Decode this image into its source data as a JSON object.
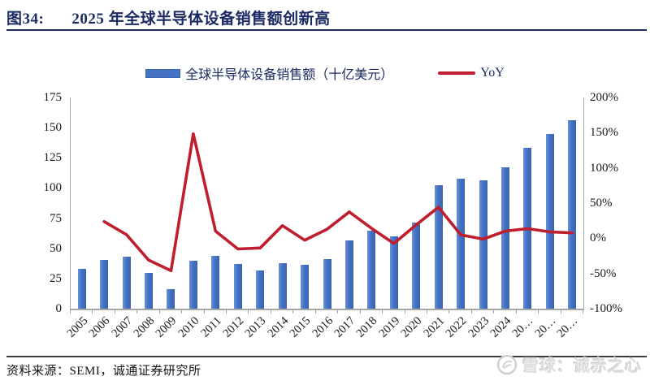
{
  "header": {
    "figure_label": "图34:",
    "title": "2025 年全球半导体设备销售额创新高"
  },
  "legend": [
    {
      "label": "全球半导体设备销售额（十亿美元）",
      "marker": "bar-swatch"
    },
    {
      "label": "YoY",
      "marker": "line-swatch"
    }
  ],
  "chart_data": {
    "type": "bar",
    "title": "2025 年全球半导体设备销售额创新高",
    "categories": [
      "2005",
      "2006",
      "2007",
      "2008",
      "2009",
      "2010",
      "2011",
      "2012",
      "2013",
      "2014",
      "2015",
      "2016",
      "2017",
      "2018",
      "2019",
      "2020",
      "2021",
      "2022",
      "2023",
      "2024",
      "20…",
      "20…",
      "20…"
    ],
    "series": [
      {
        "name": "全球半导体设备销售额（十亿美元）",
        "type": "bar",
        "axis": "left",
        "values": [
          32.9,
          40.7,
          42.8,
          29.5,
          15.9,
          39.5,
          43.5,
          36.9,
          31.8,
          37.5,
          36.5,
          41.2,
          56.6,
          64.5,
          59.8,
          71.2,
          102.6,
          107.6,
          106.3,
          117.1,
          133,
          145,
          156
        ]
      },
      {
        "name": "YoY",
        "type": "line",
        "axis": "right",
        "values": [
          null,
          23.7,
          5.2,
          -31.1,
          -46.1,
          148.4,
          10.1,
          -15.2,
          -13.8,
          17.9,
          -2.7,
          12.9,
          37.4,
          14.0,
          -7.3,
          19.1,
          44.1,
          4.9,
          -1.2,
          10.2,
          13.6,
          9.0,
          7.6
        ]
      }
    ],
    "left_axis": {
      "ticks": [
        0,
        25,
        50,
        75,
        100,
        125,
        150,
        175
      ],
      "min": 0,
      "max": 175
    },
    "right_axis": {
      "ticks": [
        "-100%",
        "-50%",
        "0%",
        "50%",
        "100%",
        "150%",
        "200%"
      ],
      "min": -100,
      "max": 200
    },
    "grid": false,
    "legend_position": "top"
  },
  "footer": {
    "source": "资料来源：SEMI，诚通证券研究所"
  },
  "watermark": {
    "brand": "雪球：诚赤之心"
  },
  "colors": {
    "title": "#1b2a63",
    "bar": "#4472c4",
    "bar_edge": "#3a63ad",
    "bar_highlight": "#6591d8",
    "line": "#bf1e2e",
    "axis": "#a6a6a6",
    "watermark": "#d9d9d9"
  }
}
